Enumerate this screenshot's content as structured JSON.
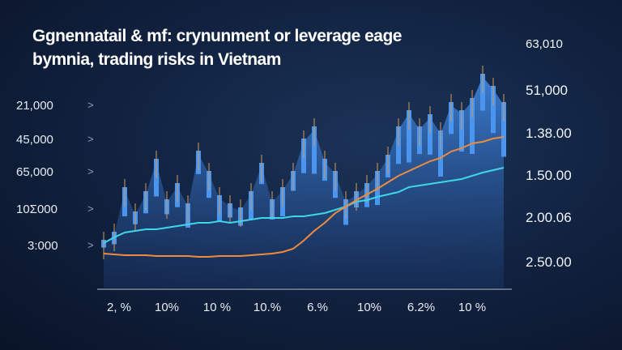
{
  "chart_data": {
    "type": "area",
    "title": "Ggnennatail & mf: crynunment or leverage eage bymnia, trading risks in Vietnam",
    "left_tick_labels": [
      "21,000",
      "45,000",
      "65,000",
      "10Σ000",
      "3:000"
    ],
    "right_tick_labels": [
      "63,010",
      "51,000",
      "1.38.00",
      "1.50.00",
      "2.00.06",
      "2.50.00"
    ],
    "x_tick_labels": [
      "2, %",
      "10%",
      "10 %",
      "10.%",
      "6.%",
      "10%",
      "6.2%",
      "10 %"
    ],
    "grid": false,
    "legend": "none",
    "ylim": [
      0,
      260
    ],
    "series": [
      {
        "type": "bar-area",
        "color": "#3f86e0",
        "values": [
          55,
          65,
          120,
          90,
          115,
          155,
          105,
          125,
          100,
          165,
          140,
          110,
          100,
          95,
          115,
          150,
          105,
          120,
          140,
          180,
          195,
          155,
          140,
          105,
          115,
          125,
          140,
          160,
          195,
          215,
          195,
          210,
          190,
          225,
          215,
          230,
          260,
          245,
          225
        ]
      },
      {
        "type": "line",
        "color": "#3fd6e6",
        "values": [
          55,
          62,
          68,
          70,
          72,
          72,
          74,
          76,
          78,
          80,
          80,
          82,
          80,
          82,
          84,
          86,
          86,
          86,
          88,
          88,
          90,
          92,
          96,
          100,
          106,
          108,
          112,
          115,
          118,
          124,
          126,
          128,
          130,
          132,
          134,
          138,
          142,
          145,
          148
        ]
      },
      {
        "type": "line",
        "color": "#f08a3c",
        "values": [
          42,
          41,
          40,
          40,
          40,
          39,
          39,
          39,
          39,
          38,
          38,
          39,
          39,
          39,
          40,
          41,
          42,
          44,
          48,
          58,
          70,
          80,
          92,
          100,
          108,
          115,
          122,
          130,
          138,
          144,
          150,
          156,
          160,
          168,
          172,
          178,
          180,
          184,
          186
        ]
      }
    ]
  }
}
